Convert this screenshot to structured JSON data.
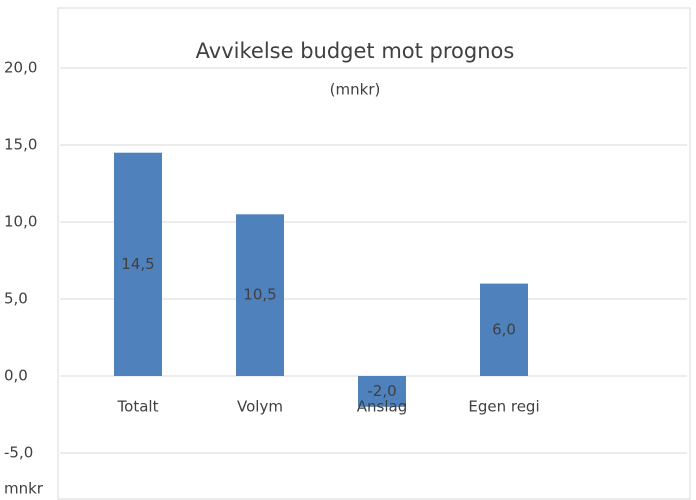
{
  "chart_data": {
    "type": "bar",
    "title": "Avvikelse budget mot prognos",
    "subtitle": "(mnkr)",
    "y_axis_label": "mnkr",
    "categories": [
      "Totalt",
      "Volym",
      "Anslag",
      "Egen regi"
    ],
    "values": [
      14.5,
      10.5,
      -2.0,
      6.0
    ],
    "value_labels": [
      "14,5",
      "10,5",
      "-2,0",
      "6,0"
    ],
    "color": "#4f81bd",
    "ylim": [
      -5,
      20
    ],
    "yticks": [
      {
        "value": -5,
        "label": "-5,0"
      },
      {
        "value": 0,
        "label": "0,0"
      },
      {
        "value": 5,
        "label": "5,0"
      },
      {
        "value": 10,
        "label": "10,0"
      },
      {
        "value": 15,
        "label": "15,0"
      },
      {
        "value": 20,
        "label": "20,0"
      }
    ],
    "grid": true
  }
}
